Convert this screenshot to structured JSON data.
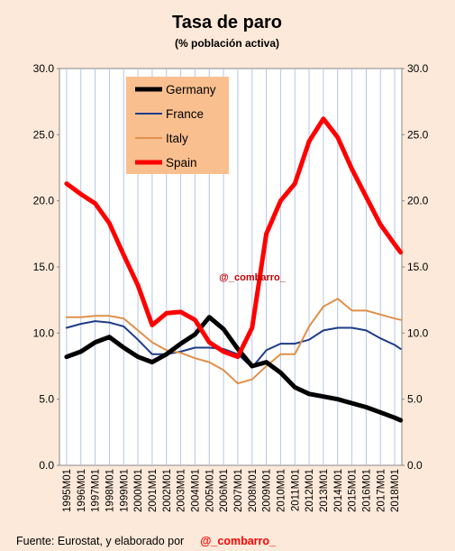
{
  "chart_data": {
    "type": "line",
    "title": "Tasa de paro",
    "subtitle": "(% población activa)",
    "ylim": [
      0,
      30
    ],
    "y_ticks": [
      "0.0",
      "5.0",
      "10.0",
      "15.0",
      "20.0",
      "25.0",
      "30.0"
    ],
    "y_ticks_right": [
      "0.0",
      "5.0",
      "10.0",
      "15.0",
      "20.0",
      "25.0",
      "30.0"
    ],
    "x_ticks": [
      "1995M01",
      "1996M01",
      "1997M01",
      "1998M01",
      "1999M01",
      "2000M01",
      "2001M01",
      "2002M01",
      "2003M01",
      "2004M01",
      "2005M01",
      "2006M01",
      "2007M01",
      "2008M01",
      "2009M01",
      "2010M01",
      "2011M01",
      "2012M01",
      "2013M01",
      "2014M01",
      "2015M01",
      "2016M01",
      "2017M01",
      "2018M01"
    ],
    "x": [
      "1995M01",
      "1996M01",
      "1997M01",
      "1998M01",
      "1999M01",
      "2000M01",
      "2001M01",
      "2002M01",
      "2003M01",
      "2004M01",
      "2005M01",
      "2006M01",
      "2007M01",
      "2008M01",
      "2009M01",
      "2010M01",
      "2011M01",
      "2012M01",
      "2013M01",
      "2014M01",
      "2015M01",
      "2016M01",
      "2017M01",
      "2018M01",
      "2018M06"
    ],
    "grid": "vertical",
    "legend_position": "top-left",
    "annotation": "@_combarro_",
    "series": [
      {
        "name": "Germany",
        "color": "#000000",
        "values": [
          8.2,
          8.6,
          9.3,
          9.7,
          8.9,
          8.2,
          7.8,
          8.4,
          9.2,
          9.9,
          11.2,
          10.3,
          8.8,
          7.5,
          7.8,
          7.0,
          5.9,
          5.4,
          5.2,
          5.0,
          4.7,
          4.4,
          4.0,
          3.6,
          3.4
        ]
      },
      {
        "name": "France",
        "color": "#1f3c88",
        "values": [
          10.4,
          10.7,
          10.9,
          10.8,
          10.5,
          9.5,
          8.4,
          8.4,
          8.6,
          8.9,
          8.9,
          8.8,
          8.4,
          7.4,
          8.7,
          9.2,
          9.2,
          9.5,
          10.2,
          10.4,
          10.4,
          10.2,
          9.6,
          9.1,
          8.8
        ]
      },
      {
        "name": "Italy",
        "color": "#e0904a",
        "values": [
          11.2,
          11.2,
          11.3,
          11.3,
          11.1,
          10.2,
          9.3,
          8.7,
          8.5,
          8.1,
          7.8,
          7.2,
          6.2,
          6.5,
          7.5,
          8.4,
          8.4,
          10.5,
          12.0,
          12.6,
          11.7,
          11.7,
          11.4,
          11.1,
          11.0
        ]
      },
      {
        "name": "Spain",
        "color": "#ff0000",
        "values": [
          21.3,
          20.5,
          19.8,
          18.3,
          15.9,
          13.6,
          10.6,
          11.5,
          11.6,
          11.0,
          9.3,
          8.6,
          8.2,
          10.4,
          17.5,
          20.0,
          21.3,
          24.5,
          26.2,
          24.8,
          22.4,
          20.3,
          18.2,
          16.7,
          16.1
        ]
      }
    ]
  },
  "footer": {
    "source": "Fuente: Eurostat, y elaborado por",
    "handle": "@_combarro_"
  }
}
